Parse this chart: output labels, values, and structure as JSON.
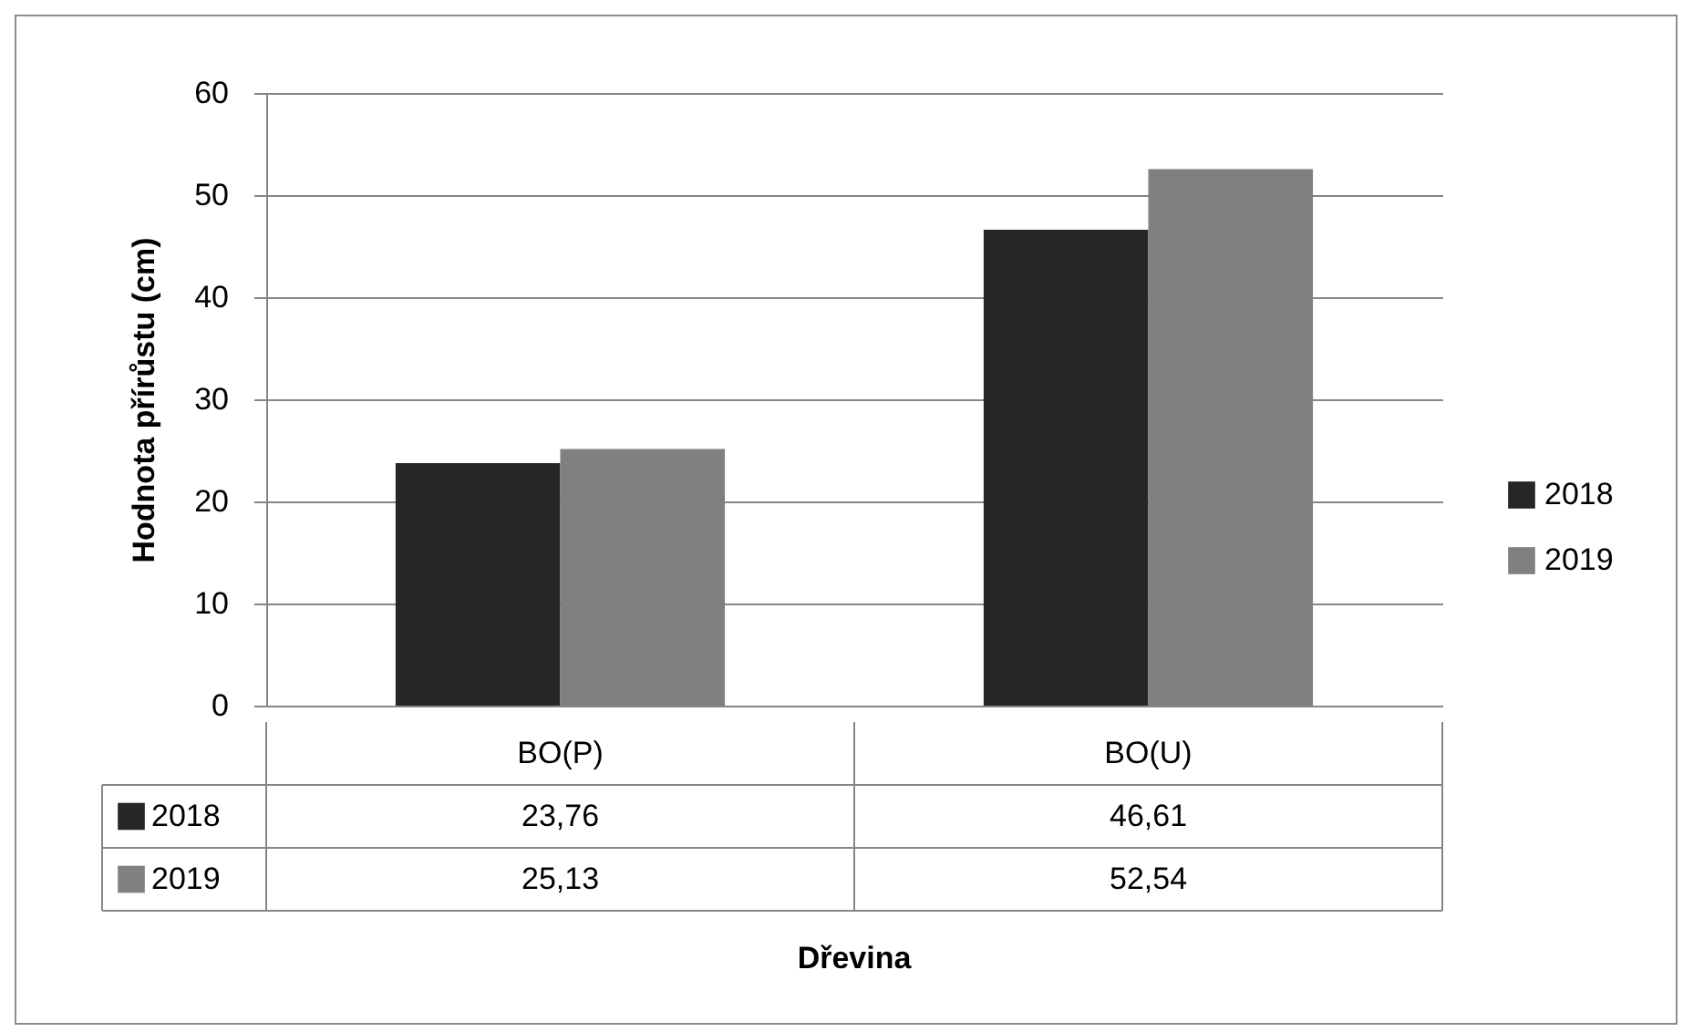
{
  "chart_data": {
    "type": "bar",
    "annotations": [
      "Dřevina"
    ],
    "ylabel": "Hodnota přírůstu (cm)",
    "categories": [
      "BO(P)",
      "BO(U)"
    ],
    "series": [
      {
        "name": "2018",
        "color": "#262626",
        "values": [
          23.76,
          46.61
        ],
        "value_labels": [
          "23,76",
          "46,61"
        ]
      },
      {
        "name": "2019",
        "color": "#808080",
        "values": [
          25.13,
          52.54
        ],
        "value_labels": [
          "25,13",
          "52,54"
        ]
      }
    ],
    "ylim": [
      0,
      60
    ],
    "yticks": [
      0,
      10,
      20,
      30,
      40,
      50,
      60
    ],
    "grid": "y",
    "legend": "right"
  }
}
